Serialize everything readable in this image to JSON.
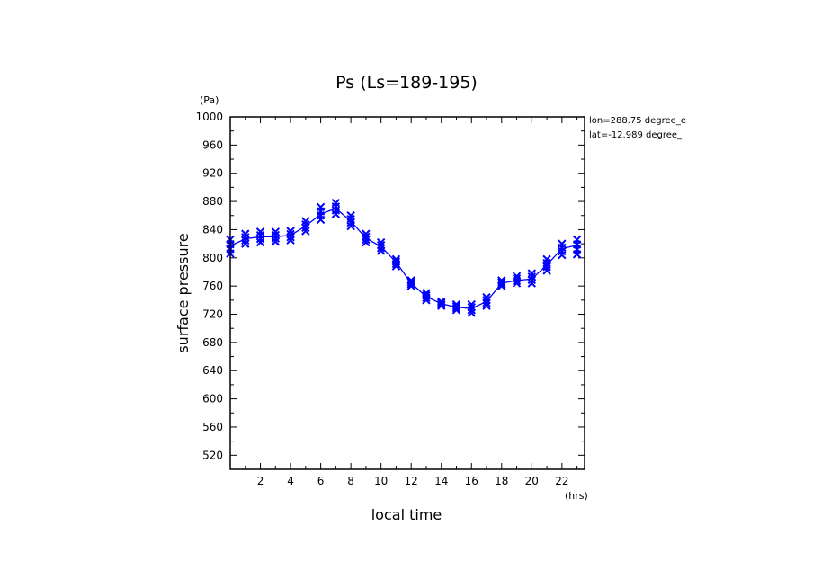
{
  "chart_data": {
    "type": "line",
    "title": "Ps (Ls=189-195)",
    "xlabel": "local time",
    "ylabel": "surface pressure",
    "x_unit": "(hrs)",
    "y_unit": "(Pa)",
    "xlim": [
      0,
      23.5
    ],
    "ylim": [
      500,
      1000
    ],
    "x_ticks": [
      2,
      4,
      6,
      8,
      10,
      12,
      14,
      16,
      18,
      20,
      22
    ],
    "y_ticks": [
      520,
      560,
      600,
      640,
      680,
      720,
      760,
      800,
      840,
      880,
      920,
      960,
      1000
    ],
    "annotations": [
      "lon=288.75 degree_e",
      "lat=-12.989 degree_"
    ],
    "series": [
      {
        "color": "#0000ff",
        "marker": "x",
        "x": [
          0,
          1,
          2,
          3,
          4,
          5,
          6,
          7,
          8,
          9,
          10,
          11,
          12,
          13,
          14,
          15,
          16,
          17,
          18,
          19,
          20,
          21,
          22,
          23
        ],
        "values": [
          817,
          827,
          830,
          830,
          832,
          845,
          862,
          870,
          852,
          828,
          816,
          794,
          764,
          745,
          735,
          730,
          728,
          738,
          764,
          768,
          770,
          790,
          813,
          818
        ],
        "spread": [
          [
            806,
            826
          ],
          [
            820,
            834
          ],
          [
            822,
            837
          ],
          [
            823,
            837
          ],
          [
            825,
            838
          ],
          [
            838,
            852
          ],
          [
            854,
            872
          ],
          [
            862,
            878
          ],
          [
            845,
            860
          ],
          [
            822,
            834
          ],
          [
            810,
            822
          ],
          [
            788,
            798
          ],
          [
            760,
            768
          ],
          [
            740,
            750
          ],
          [
            732,
            738
          ],
          [
            726,
            734
          ],
          [
            722,
            734
          ],
          [
            732,
            744
          ],
          [
            760,
            768
          ],
          [
            764,
            774
          ],
          [
            764,
            778
          ],
          [
            782,
            798
          ],
          [
            804,
            820
          ],
          [
            805,
            826
          ]
        ]
      }
    ]
  }
}
